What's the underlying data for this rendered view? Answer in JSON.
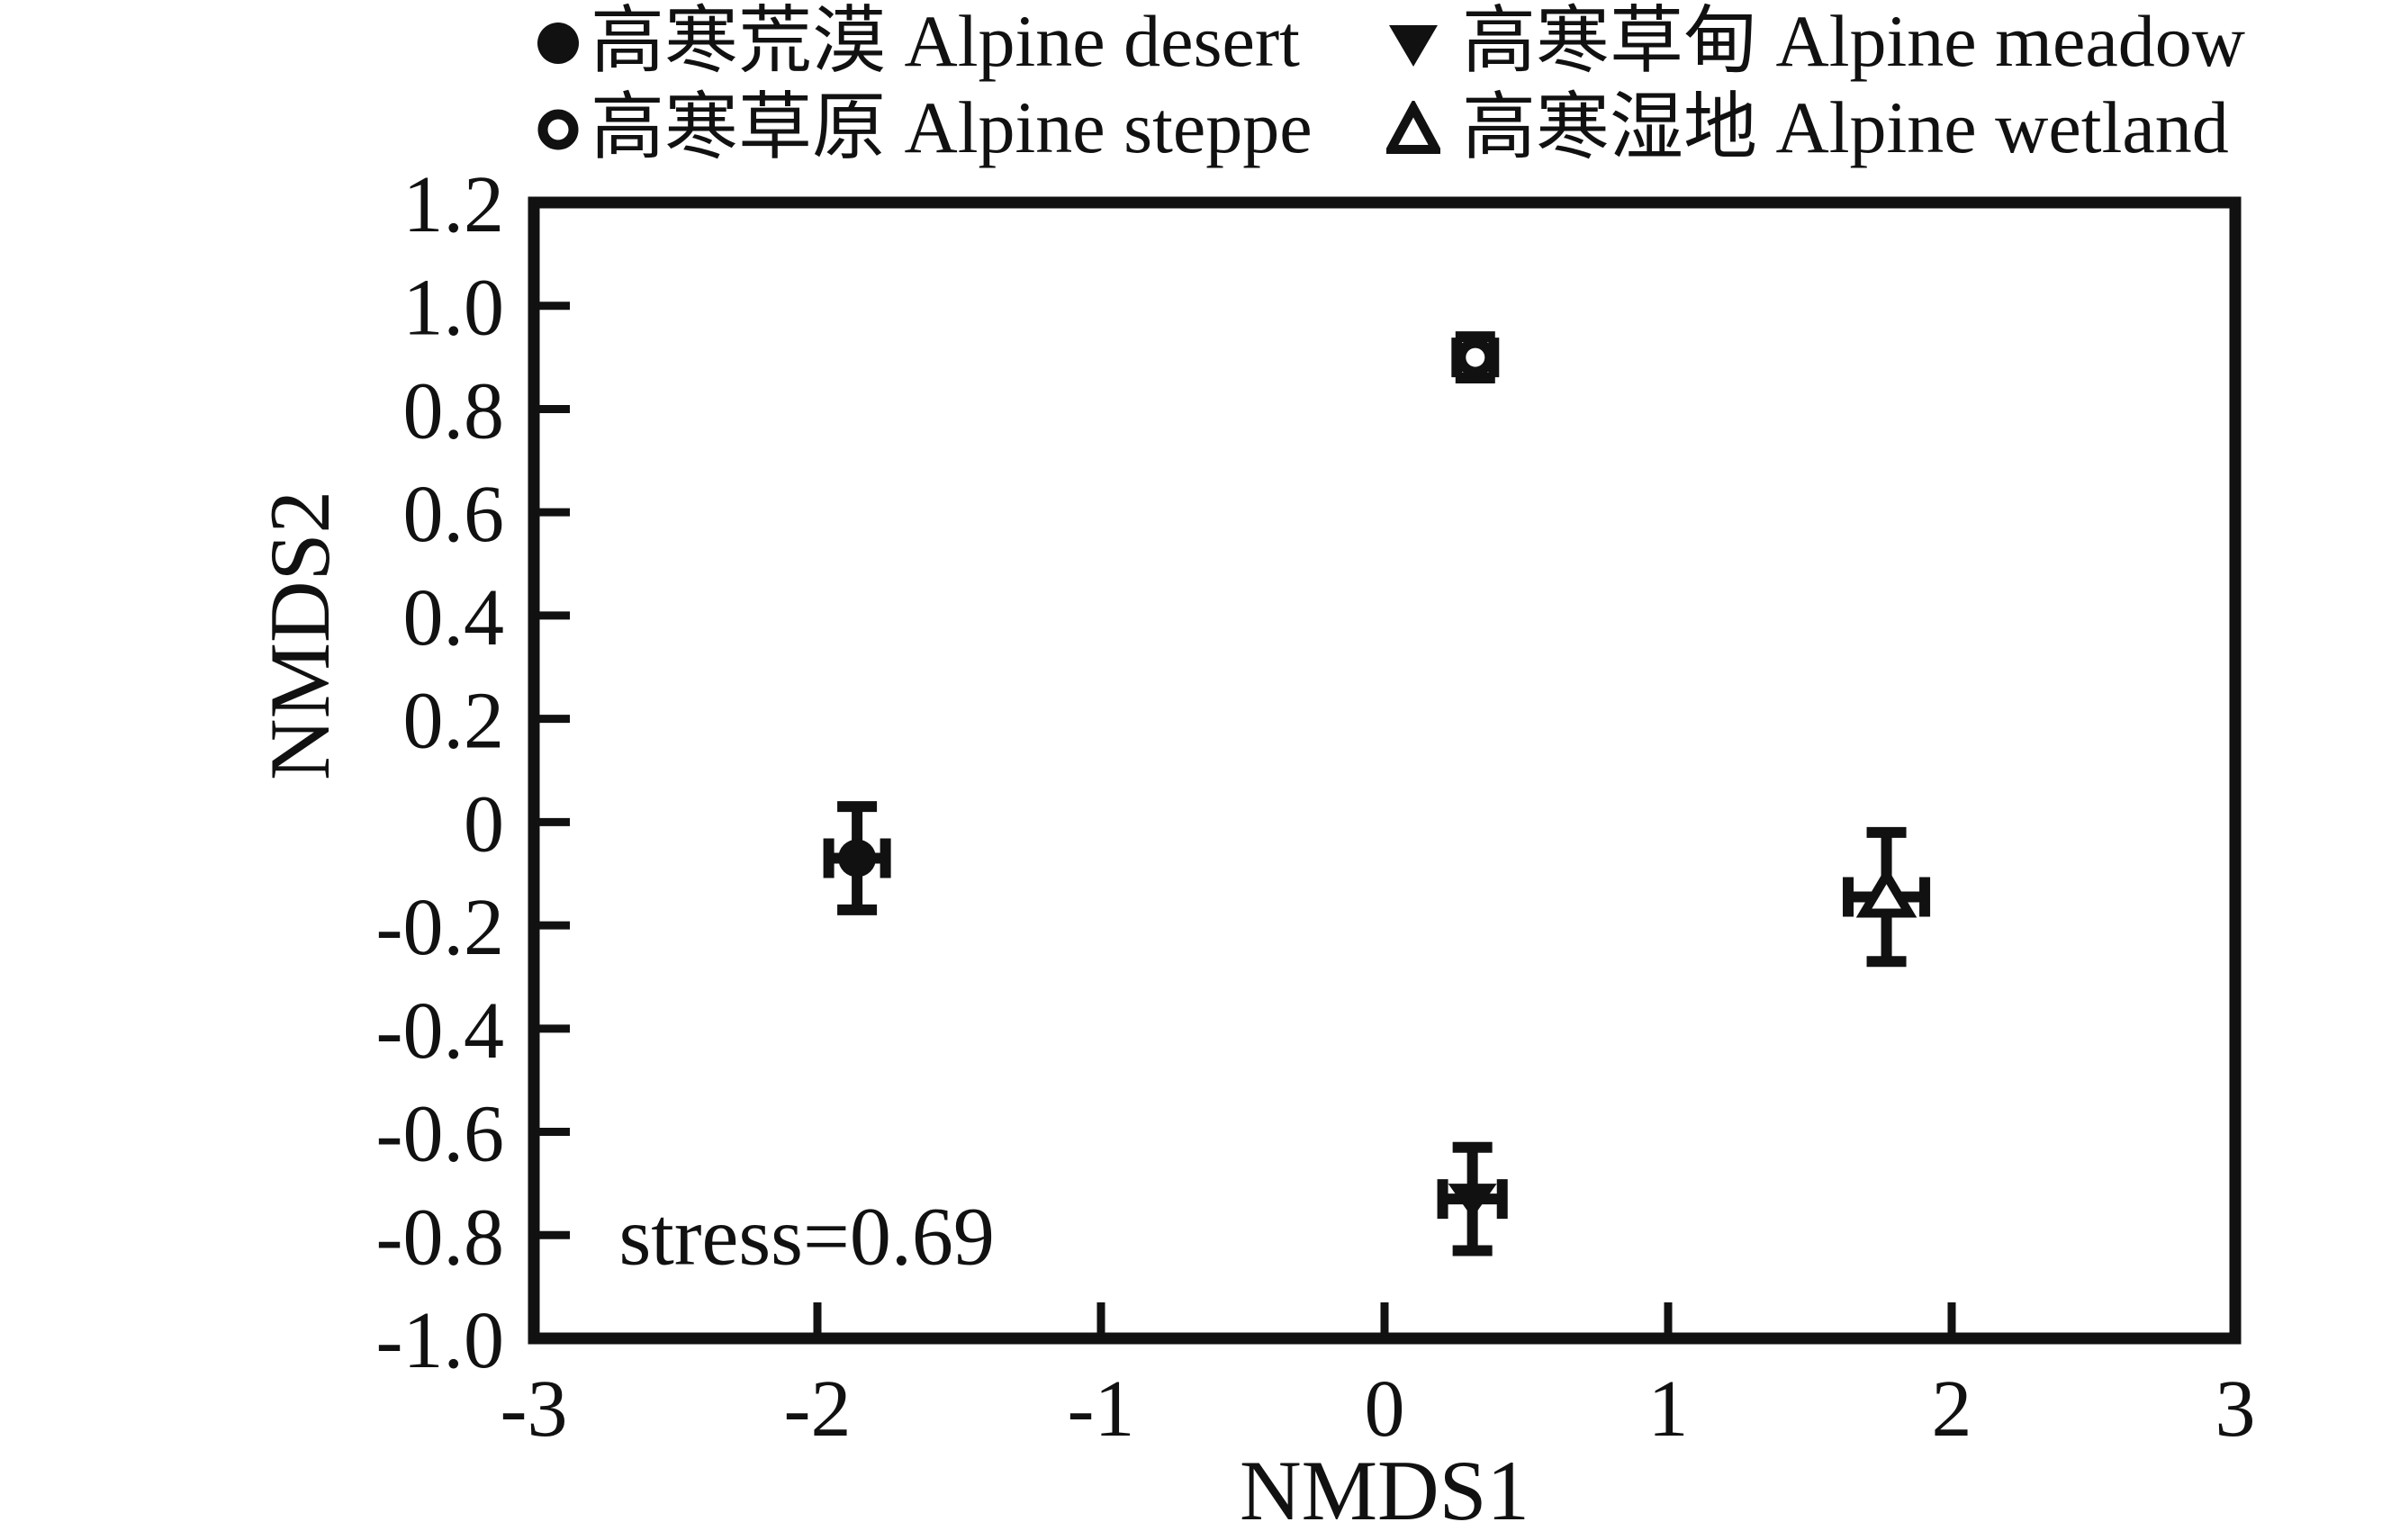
{
  "figure": {
    "background": "#ffffff",
    "ink_color": "#111111"
  },
  "legend": {
    "position": "top",
    "entries": [
      {
        "marker": "filled-circle",
        "label": "高寒荒漠 Alpine desert"
      },
      {
        "marker": "filled-down-triangle",
        "label": "高寒草甸 Alpine meadow"
      },
      {
        "marker": "open-circle",
        "label": "高寒草原 Alpine steppe"
      },
      {
        "marker": "open-triangle",
        "label": "高寒湿地 Alpine wetland"
      }
    ]
  },
  "chart_data": {
    "type": "scatter",
    "title": "",
    "xlabel": "NMDS1",
    "ylabel": "NMDS2",
    "xlim": [
      -3,
      3
    ],
    "ylim": [
      -1.0,
      1.2
    ],
    "xticks": [
      "-3",
      "-2",
      "-1",
      "0",
      "1",
      "2",
      "3"
    ],
    "yticks": [
      "1.2",
      "1.0",
      "0.8",
      "0.6",
      "0.4",
      "0.2",
      "0",
      "-0.2",
      "-0.4",
      "-0.6",
      "-0.8",
      "-1.0"
    ],
    "grid": false,
    "legend_position": "top",
    "annotation": {
      "text": "stress=0.69",
      "x": -2.7,
      "y": -0.8
    },
    "series": [
      {
        "name": "高寒荒漠 Alpine desert",
        "marker": "filled-circle",
        "points": [
          {
            "x": -1.86,
            "y": -0.07,
            "xerr": 0.1,
            "yerr": 0.1
          }
        ]
      },
      {
        "name": "高寒草原 Alpine steppe",
        "marker": "open-circle",
        "points": [
          {
            "x": 0.32,
            "y": 0.9,
            "xerr": 0.065,
            "yerr": 0.04
          }
        ]
      },
      {
        "name": "高寒草甸 Alpine meadow",
        "marker": "filled-down-triangle",
        "points": [
          {
            "x": 0.31,
            "y": -0.73,
            "xerr": 0.105,
            "yerr": 0.1
          }
        ]
      },
      {
        "name": "高寒湿地 Alpine wetland",
        "marker": "open-triangle",
        "points": [
          {
            "x": 1.77,
            "y": -0.145,
            "xerr": 0.135,
            "yerr": 0.125
          }
        ]
      }
    ]
  }
}
